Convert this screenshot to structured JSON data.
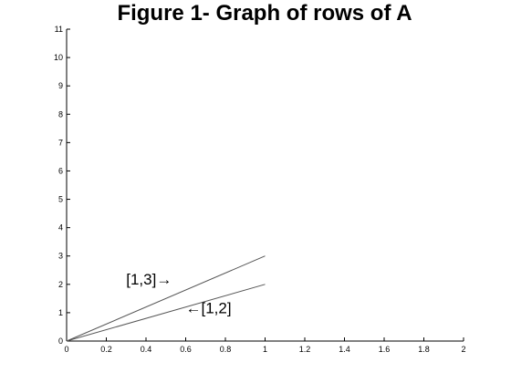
{
  "chart_data": {
    "type": "line",
    "title": "Figure 1- Graph of rows of A",
    "xlabel": "",
    "ylabel": "",
    "xlim": [
      0,
      2
    ],
    "ylim": [
      0,
      11
    ],
    "xticks": [
      "0",
      "0.2",
      "0.4",
      "0.6",
      "0.8",
      "1",
      "1.2",
      "1.4",
      "1.6",
      "1.8",
      "2"
    ],
    "yticks": [
      "0",
      "1",
      "2",
      "3",
      "4",
      "5",
      "6",
      "7",
      "8",
      "9",
      "10",
      "11"
    ],
    "grid": false,
    "series": [
      {
        "x": [
          0,
          1
        ],
        "y": [
          0,
          3
        ]
      },
      {
        "x": [
          0,
          1
        ],
        "y": [
          0,
          2
        ]
      }
    ],
    "annotations": [
      {
        "text": "[1,3]",
        "arrow": "→",
        "x": 0.3,
        "y": 2.0
      },
      {
        "text": "[1,2]",
        "arrow": "←",
        "x": 0.6,
        "y": 0.98
      }
    ],
    "colors": {
      "lines": "#555555",
      "axes": "#000000",
      "background": "#ffffff"
    }
  }
}
